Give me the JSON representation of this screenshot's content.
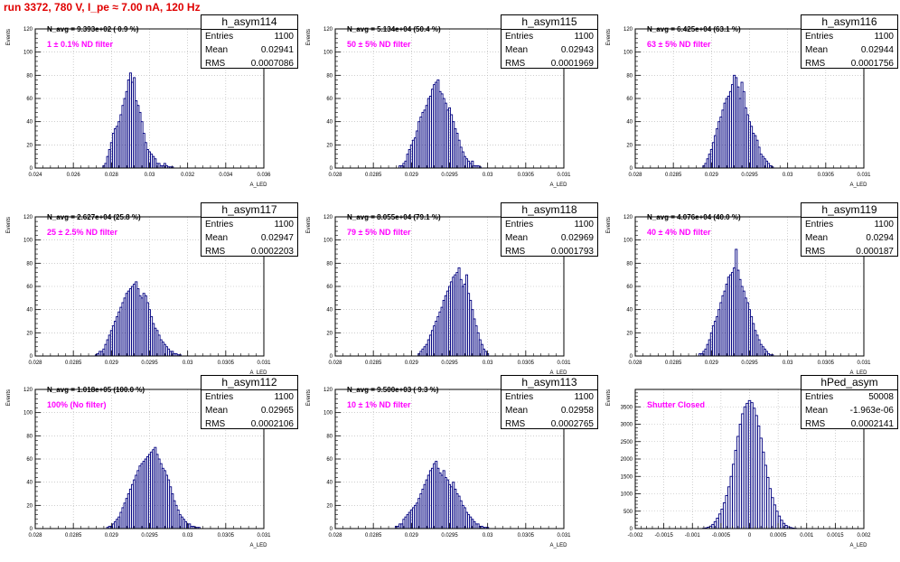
{
  "page": {
    "title": "run 3372,   780 V, I_pe ≈ 7.00 nA, 120 Hz",
    "title_color": "#e00000"
  },
  "colors": {
    "hist": "#000080",
    "grid": "#b0b0b0",
    "filter_text": "#ff00ff"
  },
  "chart_data": [
    {
      "type": "bar",
      "name": "h_asym114",
      "title": "h_asym114",
      "xlabel": "A_LED",
      "ylabel": "Events",
      "xlim": [
        0.024,
        0.036
      ],
      "ylim": [
        0,
        120
      ],
      "xticks": [
        "0.024",
        "0.026",
        "0.028",
        "0.03",
        "0.032",
        "0.034",
        "0.036"
      ],
      "yticks": [
        "0",
        "20",
        "40",
        "60",
        "80",
        "100",
        "120"
      ],
      "stats": {
        "entries_label": "Entries",
        "entries": "1100",
        "mean_label": "Mean",
        "mean": "0.02941",
        "rms_label": "RMS",
        "rms": "0.0007086"
      },
      "navg": "N_avg = 9.393e+02 ( 0.9 %)",
      "filter": "1 ± 0.1% ND filter",
      "bin_width": 0.0001,
      "x": [
        0.0276,
        0.0277,
        0.0278,
        0.0279,
        0.028,
        0.0281,
        0.0282,
        0.0283,
        0.0284,
        0.0285,
        0.0286,
        0.0287,
        0.0288,
        0.0289,
        0.029,
        0.0291,
        0.0292,
        0.0293,
        0.0294,
        0.0295,
        0.0296,
        0.0297,
        0.0298,
        0.0299,
        0.03,
        0.0301,
        0.0302,
        0.0303,
        0.0304,
        0.0305,
        0.0306,
        0.0307,
        0.0308,
        0.0309,
        0.031,
        0.0311,
        0.0312
      ],
      "values": [
        2,
        4,
        10,
        16,
        22,
        30,
        34,
        36,
        40,
        46,
        54,
        60,
        66,
        76,
        82,
        74,
        78,
        58,
        54,
        48,
        40,
        30,
        22,
        16,
        14,
        12,
        10,
        8,
        4,
        4,
        2,
        2,
        4,
        2,
        1,
        1,
        1
      ]
    },
    {
      "type": "bar",
      "name": "h_asym115",
      "title": "h_asym115",
      "xlabel": "A_LED",
      "ylabel": "Events",
      "xlim": [
        0.028,
        0.031
      ],
      "ylim": [
        0,
        120
      ],
      "xticks": [
        "0.028",
        "0.0285",
        "0.029",
        "0.0295",
        "0.03",
        "0.0305",
        "0.031"
      ],
      "yticks": [
        "0",
        "20",
        "40",
        "60",
        "80",
        "100",
        "120"
      ],
      "stats": {
        "entries_label": "Entries",
        "entries": "1100",
        "mean_label": "Mean",
        "mean": "0.02943",
        "rms_label": "RMS",
        "rms": "0.0001969"
      },
      "navg": "N_avg = 5.134e+04 (50.4 %)",
      "filter": "50 ± 5% ND filter",
      "bin_width": 2.5e-05,
      "x": [
        0.02885,
        0.028875,
        0.0289,
        0.028925,
        0.02895,
        0.028975,
        0.029,
        0.029025,
        0.02905,
        0.029075,
        0.0291,
        0.029125,
        0.02915,
        0.029175,
        0.0292,
        0.029225,
        0.02925,
        0.029275,
        0.0293,
        0.029325,
        0.02935,
        0.029375,
        0.0294,
        0.029425,
        0.02945,
        0.029475,
        0.0295,
        0.029525,
        0.02955,
        0.029575,
        0.0296,
        0.029625,
        0.02965,
        0.029675,
        0.0297,
        0.029725,
        0.02975,
        0.029775,
        0.0298,
        0.029825,
        0.02985,
        0.029875,
        0.0299
      ],
      "values": [
        2,
        2,
        4,
        6,
        12,
        16,
        20,
        24,
        26,
        32,
        40,
        44,
        48,
        50,
        54,
        60,
        62,
        68,
        72,
        74,
        76,
        66,
        64,
        60,
        56,
        50,
        52,
        46,
        40,
        34,
        30,
        24,
        18,
        14,
        10,
        8,
        6,
        4,
        6,
        2,
        2,
        2,
        1
      ]
    },
    {
      "type": "bar",
      "name": "h_asym116",
      "title": "h_asym116",
      "xlabel": "A_LED",
      "ylabel": "Events",
      "xlim": [
        0.028,
        0.031
      ],
      "ylim": [
        0,
        120
      ],
      "xticks": [
        "0.028",
        "0.0285",
        "0.029",
        "0.0295",
        "0.03",
        "0.0305",
        "0.031"
      ],
      "yticks": [
        "0",
        "20",
        "40",
        "60",
        "80",
        "100",
        "120"
      ],
      "stats": {
        "entries_label": "Entries",
        "entries": "1100",
        "mean_label": "Mean",
        "mean": "0.02944",
        "rms_label": "RMS",
        "rms": "0.0001756"
      },
      "navg": "N_avg = 6.425e+04 (63.1 %)",
      "filter": "63 ± 5% ND filter",
      "bin_width": 2.5e-05,
      "x": [
        0.0289,
        0.028925,
        0.02895,
        0.028975,
        0.029,
        0.029025,
        0.02905,
        0.029075,
        0.0291,
        0.029125,
        0.02915,
        0.029175,
        0.0292,
        0.029225,
        0.02925,
        0.029275,
        0.0293,
        0.029325,
        0.02935,
        0.029375,
        0.0294,
        0.029425,
        0.02945,
        0.029475,
        0.0295,
        0.029525,
        0.02955,
        0.029575,
        0.0296,
        0.029625,
        0.02965,
        0.029675,
        0.0297,
        0.029725,
        0.02975,
        0.029775,
        0.0298
      ],
      "values": [
        2,
        4,
        8,
        12,
        16,
        22,
        28,
        34,
        40,
        44,
        50,
        56,
        60,
        62,
        66,
        72,
        80,
        78,
        70,
        60,
        74,
        66,
        52,
        46,
        40,
        36,
        30,
        28,
        24,
        18,
        12,
        10,
        8,
        6,
        4,
        2,
        1
      ]
    },
    {
      "type": "bar",
      "name": "h_asym117",
      "title": "h_asym117",
      "xlabel": "A_LED",
      "ylabel": "Events",
      "xlim": [
        0.028,
        0.031
      ],
      "ylim": [
        0,
        120
      ],
      "xticks": [
        "0.028",
        "0.0285",
        "0.029",
        "0.0295",
        "0.03",
        "0.0305",
        "0.031"
      ],
      "yticks": [
        "0",
        "20",
        "40",
        "60",
        "80",
        "100",
        "120"
      ],
      "stats": {
        "entries_label": "Entries",
        "entries": "1100",
        "mean_label": "Mean",
        "mean": "0.02947",
        "rms_label": "RMS",
        "rms": "0.0002203"
      },
      "navg": "N_avg = 2.627e+04 (25.8 %)",
      "filter": "25 ± 2.5% ND filter",
      "bin_width": 2.5e-05,
      "x": [
        0.0288,
        0.028825,
        0.02885,
        0.028875,
        0.0289,
        0.028925,
        0.02895,
        0.028975,
        0.029,
        0.029025,
        0.02905,
        0.029075,
        0.0291,
        0.029125,
        0.02915,
        0.029175,
        0.0292,
        0.029225,
        0.02925,
        0.029275,
        0.0293,
        0.029325,
        0.02935,
        0.029375,
        0.0294,
        0.029425,
        0.02945,
        0.029475,
        0.0295,
        0.029525,
        0.02955,
        0.029575,
        0.0296,
        0.029625,
        0.02965,
        0.029675,
        0.0297,
        0.029725,
        0.02975,
        0.029775,
        0.0298,
        0.029825,
        0.02985,
        0.029875,
        0.0299
      ],
      "values": [
        1,
        2,
        4,
        4,
        6,
        10,
        14,
        18,
        22,
        26,
        30,
        34,
        38,
        42,
        46,
        50,
        54,
        56,
        58,
        60,
        62,
        64,
        58,
        52,
        50,
        54,
        52,
        46,
        40,
        34,
        28,
        24,
        22,
        18,
        14,
        12,
        10,
        8,
        6,
        4,
        4,
        2,
        2,
        1,
        1
      ]
    },
    {
      "type": "bar",
      "name": "h_asym118",
      "title": "h_asym118",
      "xlabel": "A_LED",
      "ylabel": "Events",
      "xlim": [
        0.028,
        0.031
      ],
      "ylim": [
        0,
        120
      ],
      "xticks": [
        "0.028",
        "0.0285",
        "0.029",
        "0.0295",
        "0.03",
        "0.0305",
        "0.031"
      ],
      "yticks": [
        "0",
        "20",
        "40",
        "60",
        "80",
        "100",
        "120"
      ],
      "stats": {
        "entries_label": "Entries",
        "entries": "1100",
        "mean_label": "Mean",
        "mean": "0.02969",
        "rms_label": "RMS",
        "rms": "0.0001793"
      },
      "navg": "N_avg = 8.055e+04 (79.1 %)",
      "filter": "79 ± 5% ND filter",
      "bin_width": 2.5e-05,
      "x": [
        0.0291,
        0.029125,
        0.02915,
        0.029175,
        0.0292,
        0.029225,
        0.02925,
        0.029275,
        0.0293,
        0.029325,
        0.02935,
        0.029375,
        0.0294,
        0.029425,
        0.02945,
        0.029475,
        0.0295,
        0.029525,
        0.02955,
        0.029575,
        0.0296,
        0.029625,
        0.02965,
        0.029675,
        0.0297,
        0.029725,
        0.02975,
        0.029775,
        0.0298,
        0.029825,
        0.02985,
        0.029875,
        0.0299,
        0.029925,
        0.02995,
        0.029975,
        0.03
      ],
      "values": [
        2,
        4,
        6,
        8,
        10,
        14,
        18,
        22,
        26,
        30,
        34,
        38,
        42,
        48,
        52,
        56,
        60,
        64,
        68,
        70,
        72,
        76,
        66,
        60,
        62,
        70,
        54,
        48,
        40,
        32,
        26,
        20,
        14,
        10,
        6,
        4,
        2
      ]
    },
    {
      "type": "bar",
      "name": "h_asym119",
      "title": "h_asym119",
      "xlabel": "A_LED",
      "ylabel": "Events",
      "xlim": [
        0.028,
        0.031
      ],
      "ylim": [
        0,
        120
      ],
      "xticks": [
        "0.028",
        "0.0285",
        "0.029",
        "0.0295",
        "0.03",
        "0.0305",
        "0.031"
      ],
      "yticks": [
        "0",
        "20",
        "40",
        "60",
        "80",
        "100",
        "120"
      ],
      "stats": {
        "entries_label": "Entries",
        "entries": "1100",
        "mean_label": "Mean",
        "mean": "0.0294",
        "rms_label": "RMS",
        "rms": "0.000187"
      },
      "navg": "N_avg = 4.076e+04 (40.0 %)",
      "filter": "40 ± 4% ND filter",
      "bin_width": 2.5e-05,
      "x": [
        0.02885,
        0.028875,
        0.0289,
        0.028925,
        0.02895,
        0.028975,
        0.029,
        0.029025,
        0.02905,
        0.029075,
        0.0291,
        0.029125,
        0.02915,
        0.029175,
        0.0292,
        0.029225,
        0.02925,
        0.029275,
        0.0293,
        0.029325,
        0.02935,
        0.029375,
        0.0294,
        0.029425,
        0.02945,
        0.029475,
        0.0295,
        0.029525,
        0.02955,
        0.029575,
        0.0296,
        0.029625,
        0.02965,
        0.029675,
        0.0297,
        0.029725,
        0.02975,
        0.029775,
        0.0298
      ],
      "values": [
        2,
        2,
        4,
        6,
        10,
        14,
        20,
        26,
        30,
        34,
        40,
        46,
        52,
        56,
        62,
        68,
        70,
        72,
        76,
        92,
        74,
        66,
        60,
        56,
        50,
        46,
        40,
        34,
        28,
        22,
        18,
        14,
        10,
        8,
        6,
        4,
        2,
        1,
        1
      ]
    },
    {
      "type": "bar",
      "name": "h_asym112",
      "title": "h_asym112",
      "xlabel": "A_LED",
      "ylabel": "Events",
      "xlim": [
        0.028,
        0.031
      ],
      "ylim": [
        0,
        120
      ],
      "xticks": [
        "0.028",
        "0.0285",
        "0.029",
        "0.0295",
        "0.03",
        "0.0305",
        "0.031"
      ],
      "yticks": [
        "0",
        "20",
        "40",
        "60",
        "80",
        "100",
        "120"
      ],
      "stats": {
        "entries_label": "Entries",
        "entries": "1100",
        "mean_label": "Mean",
        "mean": "0.02965",
        "rms_label": "RMS",
        "rms": "0.0002106"
      },
      "navg": "N_avg = 1.018e+05 (100.0 %)",
      "filter": "100% (No filter)",
      "bin_width": 2.5e-05,
      "x": [
        0.02895,
        0.028975,
        0.029,
        0.029025,
        0.02905,
        0.029075,
        0.0291,
        0.029125,
        0.02915,
        0.029175,
        0.0292,
        0.029225,
        0.02925,
        0.029275,
        0.0293,
        0.029325,
        0.02935,
        0.029375,
        0.0294,
        0.029425,
        0.02945,
        0.029475,
        0.0295,
        0.029525,
        0.02955,
        0.029575,
        0.0296,
        0.029625,
        0.02965,
        0.029675,
        0.0297,
        0.029725,
        0.02975,
        0.029775,
        0.0298,
        0.029825,
        0.02985,
        0.029875,
        0.0299,
        0.029925,
        0.02995,
        0.029975,
        0.03,
        0.030025,
        0.03005,
        0.030075,
        0.0301,
        0.030125,
        0.03015
      ],
      "values": [
        1,
        2,
        2,
        4,
        6,
        8,
        10,
        14,
        18,
        22,
        26,
        30,
        34,
        38,
        42,
        46,
        50,
        54,
        56,
        58,
        60,
        62,
        64,
        66,
        68,
        70,
        64,
        60,
        56,
        52,
        50,
        46,
        42,
        36,
        30,
        24,
        20,
        16,
        12,
        10,
        8,
        6,
        4,
        4,
        2,
        2,
        1,
        1,
        1
      ]
    },
    {
      "type": "bar",
      "name": "h_asym113",
      "title": "h_asym113",
      "xlabel": "A_LED",
      "ylabel": "Events",
      "xlim": [
        0.028,
        0.031
      ],
      "ylim": [
        0,
        120
      ],
      "xticks": [
        "0.028",
        "0.0285",
        "0.029",
        "0.0295",
        "0.03",
        "0.0305",
        "0.031"
      ],
      "yticks": [
        "0",
        "20",
        "40",
        "60",
        "80",
        "100",
        "120"
      ],
      "stats": {
        "entries_label": "Entries",
        "entries": "1100",
        "mean_label": "Mean",
        "mean": "0.02958",
        "rms_label": "RMS",
        "rms": "0.0002765"
      },
      "navg": "N_avg = 9.500e+03 ( 9.3 %)",
      "filter": "10 ± 1% ND filter",
      "bin_width": 2.5e-05,
      "x": [
        0.0288,
        0.028825,
        0.02885,
        0.028875,
        0.0289,
        0.028925,
        0.02895,
        0.028975,
        0.029,
        0.029025,
        0.02905,
        0.029075,
        0.0291,
        0.029125,
        0.02915,
        0.029175,
        0.0292,
        0.029225,
        0.02925,
        0.029275,
        0.0293,
        0.029325,
        0.02935,
        0.029375,
        0.0294,
        0.029425,
        0.02945,
        0.029475,
        0.0295,
        0.029525,
        0.02955,
        0.029575,
        0.0296,
        0.029625,
        0.02965,
        0.029675,
        0.0297,
        0.029725,
        0.02975,
        0.029775,
        0.0298,
        0.029825,
        0.02985,
        0.029875,
        0.0299,
        0.029925,
        0.02995,
        0.029975,
        0.03
      ],
      "values": [
        2,
        2,
        4,
        4,
        8,
        10,
        12,
        14,
        16,
        18,
        20,
        22,
        26,
        30,
        34,
        38,
        42,
        46,
        50,
        52,
        56,
        58,
        52,
        48,
        46,
        50,
        44,
        42,
        38,
        36,
        40,
        34,
        30,
        28,
        24,
        20,
        18,
        14,
        12,
        10,
        8,
        6,
        4,
        4,
        2,
        2,
        1,
        1,
        1
      ]
    },
    {
      "type": "bar",
      "name": "hPed_asym",
      "title": "hPed_asym",
      "xlabel": "A_LED",
      "ylabel": "Events",
      "xlim": [
        -0.002,
        0.002
      ],
      "ylim": [
        0,
        4000
      ],
      "xticks": [
        "-0.002",
        "-0.0015",
        "-0.001",
        "-0.0005",
        "0",
        "0.0005",
        "0.001",
        "0.0015",
        "0.002"
      ],
      "yticks": [
        "0",
        "500",
        "1000",
        "1500",
        "2000",
        "2500",
        "3000",
        "3500"
      ],
      "stats": {
        "entries_label": "Entries",
        "entries": "50008",
        "mean_label": "Mean",
        "mean": "-1.963e-06",
        "rms_label": "RMS",
        "rms": "0.0002141"
      },
      "navg": "",
      "filter": "Shutter Closed",
      "bin_width": 4e-05,
      "x": [
        -0.0008,
        -0.00076,
        -0.00072,
        -0.00068,
        -0.00064,
        -0.0006,
        -0.00056,
        -0.00052,
        -0.00048,
        -0.00044,
        -0.0004,
        -0.00036,
        -0.00032,
        -0.00028,
        -0.00024,
        -0.0002,
        -0.00016,
        -0.00012,
        -8e-05,
        -4e-05,
        0,
        4e-05,
        8e-05,
        0.00012,
        0.00016,
        0.0002,
        0.00024,
        0.00028,
        0.00032,
        0.00036,
        0.0004,
        0.00044,
        0.00048,
        0.00052,
        0.00056,
        0.0006,
        0.00064,
        0.00068,
        0.00072,
        0.00076,
        0.0008
      ],
      "values": [
        10,
        20,
        40,
        70,
        120,
        200,
        300,
        420,
        560,
        740,
        950,
        1200,
        1500,
        1850,
        2250,
        2650,
        3000,
        3300,
        3500,
        3600,
        3680,
        3620,
        3460,
        3250,
        2950,
        2600,
        2200,
        1820,
        1470,
        1150,
        890,
        680,
        500,
        360,
        240,
        150,
        90,
        50,
        30,
        15,
        8
      ]
    }
  ]
}
